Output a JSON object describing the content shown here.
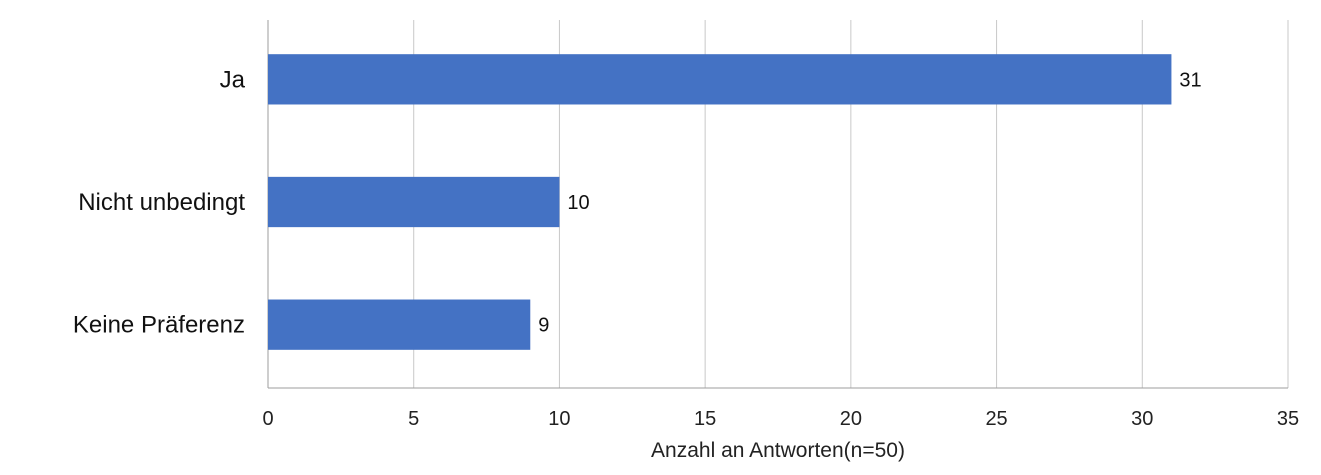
{
  "chart_data": {
    "type": "bar",
    "orientation": "horizontal",
    "categories": [
      "Ja",
      "Nicht unbedingt",
      "Keine Präferenz"
    ],
    "values": [
      31,
      10,
      9
    ],
    "title": "",
    "xlabel": "Anzahl an Antworten(n=50)",
    "ylabel": "",
    "xlim": [
      0,
      35
    ],
    "xticks": [
      0,
      5,
      10,
      15,
      20,
      25,
      30,
      35
    ],
    "grid": "vertical",
    "legend": "none",
    "bar_color": "#4472C4",
    "grid_color": "#C8C8C8"
  }
}
